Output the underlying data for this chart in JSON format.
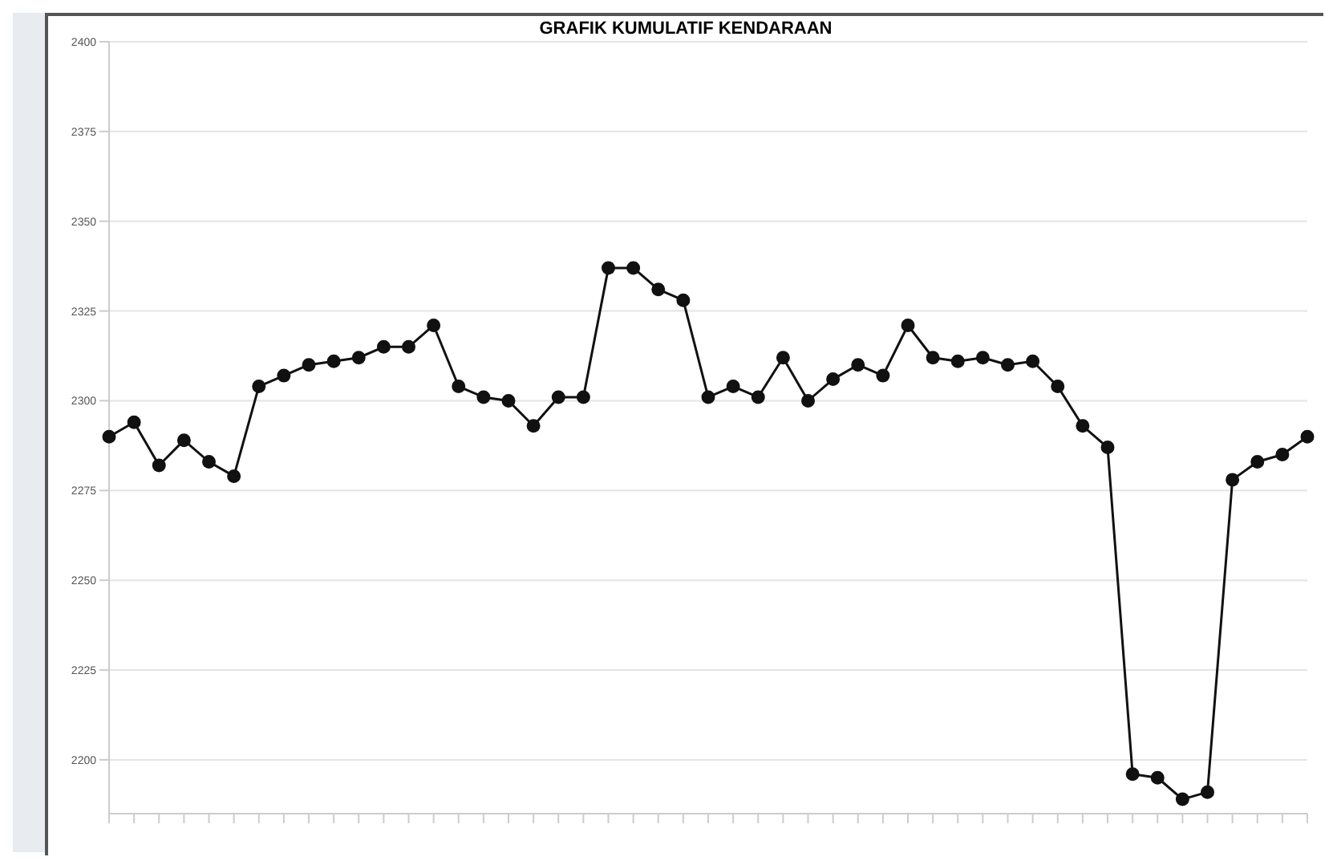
{
  "chart_data": {
    "type": "line",
    "title": "GRAFIK KUMULATIF KENDARAAN",
    "categories": [
      null,
      null,
      null,
      null,
      null,
      null,
      null,
      null,
      null,
      null,
      null,
      null,
      null,
      null,
      null,
      null,
      null,
      null,
      null,
      null,
      null,
      null,
      null,
      null,
      null,
      null,
      null,
      null,
      null,
      null,
      null,
      null,
      null,
      null,
      null,
      null,
      null,
      null,
      null,
      null,
      null,
      null,
      null,
      null,
      null,
      null,
      null,
      null,
      null
    ],
    "series": [
      {
        "color": "#111111",
        "values": [
          2290,
          2294,
          2282,
          2289,
          2283,
          2279,
          2304,
          2307,
          2310,
          2311,
          2312,
          2315,
          2315,
          2321,
          2304,
          2301,
          2300,
          2293,
          2301,
          2301,
          2337,
          2337,
          2331,
          2328,
          2301,
          2304,
          2301,
          2312,
          2300,
          2306,
          2310,
          2307,
          2321,
          2312,
          2311,
          2312,
          2310,
          2311,
          2304,
          2293,
          2287,
          2196,
          2195,
          2189,
          2191,
          2278,
          2283,
          2285,
          2290
        ]
      }
    ],
    "ylim": [
      2185,
      2400
    ],
    "yticks": [
      2200,
      2225,
      2250,
      2275,
      2300,
      2325,
      2350,
      2375,
      2400
    ],
    "grid": "y",
    "marker": "circle",
    "line_style": "solid"
  }
}
